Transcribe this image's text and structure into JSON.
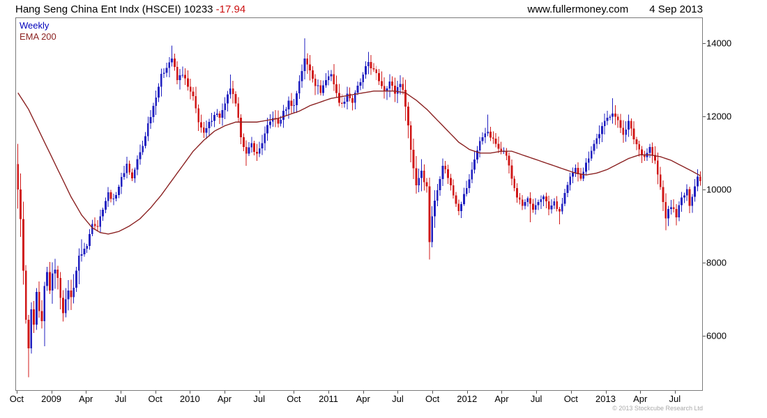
{
  "header": {
    "title": "Hang Seng China Ent Indx (HSCEI) 10233 ",
    "change": "-17.94",
    "website": "www.fullermoney.com",
    "date": "4 Sep 2013"
  },
  "legend": {
    "timeframe": "Weekly",
    "overlay": "EMA 200"
  },
  "footer": {
    "copyright": "© 2013 Stockcube Research Ltd"
  },
  "chart_data": {
    "type": "candlestick",
    "title": "Hang Seng China Ent Indx (HSCEI)",
    "timeframe": "Weekly",
    "overlay": "EMA 200",
    "last_close": 10233,
    "change": -17.94,
    "ylim": [
      4500,
      14700
    ],
    "y_ticks": [
      6000,
      8000,
      10000,
      12000,
      14000
    ],
    "x_range_weeks": 258,
    "x_ticks": [
      {
        "week": 0,
        "label": "Oct"
      },
      {
        "week": 13,
        "label": "2009"
      },
      {
        "week": 26,
        "label": "Apr"
      },
      {
        "week": 39,
        "label": "Jul"
      },
      {
        "week": 52,
        "label": "Oct"
      },
      {
        "week": 65,
        "label": "2010"
      },
      {
        "week": 78,
        "label": "Apr"
      },
      {
        "week": 91,
        "label": "Jul"
      },
      {
        "week": 104,
        "label": "Oct"
      },
      {
        "week": 117,
        "label": "2011"
      },
      {
        "week": 130,
        "label": "Apr"
      },
      {
        "week": 143,
        "label": "Jul"
      },
      {
        "week": 156,
        "label": "Oct"
      },
      {
        "week": 169,
        "label": "2012"
      },
      {
        "week": 182,
        "label": "Apr"
      },
      {
        "week": 195,
        "label": "Jul"
      },
      {
        "week": 208,
        "label": "Oct"
      },
      {
        "week": 221,
        "label": "2013"
      },
      {
        "week": 234,
        "label": "Apr"
      },
      {
        "week": 247,
        "label": "Jul"
      }
    ],
    "up_color": "#2020c0",
    "down_color": "#d01818",
    "ema_color": "#8b2222",
    "first_open": 10700,
    "close_anchors": [
      [
        0,
        9900
      ],
      [
        1,
        9300
      ],
      [
        2,
        7700
      ],
      [
        3,
        6400
      ],
      [
        4,
        5600
      ],
      [
        5,
        6700
      ],
      [
        6,
        6200
      ],
      [
        7,
        7100
      ],
      [
        8,
        6600
      ],
      [
        9,
        6300
      ],
      [
        10,
        7300
      ],
      [
        11,
        7700
      ],
      [
        12,
        7300
      ],
      [
        13,
        7600
      ],
      [
        14,
        7900
      ],
      [
        15,
        7500
      ],
      [
        16,
        7100
      ],
      [
        17,
        6700
      ],
      [
        18,
        6900
      ],
      [
        19,
        7300
      ],
      [
        20,
        7000
      ],
      [
        21,
        7400
      ],
      [
        22,
        7800
      ],
      [
        23,
        8100
      ],
      [
        24,
        8300
      ],
      [
        26,
        8450
      ],
      [
        28,
        9100
      ],
      [
        30,
        9000
      ],
      [
        32,
        9500
      ],
      [
        34,
        9900
      ],
      [
        36,
        9700
      ],
      [
        38,
        10100
      ],
      [
        39,
        10300
      ],
      [
        41,
        10700
      ],
      [
        43,
        10300
      ],
      [
        45,
        10800
      ],
      [
        47,
        11200
      ],
      [
        49,
        11800
      ],
      [
        51,
        12300
      ],
      [
        52,
        12600
      ],
      [
        54,
        13100
      ],
      [
        56,
        13400
      ],
      [
        58,
        13600
      ],
      [
        60,
        13000
      ],
      [
        62,
        13200
      ],
      [
        64,
        12800
      ],
      [
        66,
        12500
      ],
      [
        68,
        11900
      ],
      [
        70,
        11500
      ],
      [
        72,
        11800
      ],
      [
        74,
        12100
      ],
      [
        76,
        12000
      ],
      [
        78,
        12300
      ],
      [
        80,
        12800
      ],
      [
        82,
        12300
      ],
      [
        84,
        11500
      ],
      [
        86,
        10950
      ],
      [
        88,
        11250
      ],
      [
        90,
        10950
      ],
      [
        92,
        11300
      ],
      [
        94,
        11700
      ],
      [
        96,
        12000
      ],
      [
        98,
        11800
      ],
      [
        100,
        12100
      ],
      [
        102,
        12400
      ],
      [
        104,
        12300
      ],
      [
        106,
        13000
      ],
      [
        108,
        13550
      ],
      [
        110,
        13300
      ],
      [
        112,
        12900
      ],
      [
        114,
        12700
      ],
      [
        116,
        13000
      ],
      [
        118,
        13200
      ],
      [
        120,
        12600
      ],
      [
        122,
        12300
      ],
      [
        124,
        12650
      ],
      [
        126,
        12400
      ],
      [
        128,
        12800
      ],
      [
        130,
        13100
      ],
      [
        132,
        13500
      ],
      [
        134,
        13250
      ],
      [
        136,
        13000
      ],
      [
        138,
        12750
      ],
      [
        140,
        12950
      ],
      [
        142,
        12650
      ],
      [
        144,
        12950
      ],
      [
        146,
        12400
      ],
      [
        148,
        11100
      ],
      [
        150,
        10150
      ],
      [
        152,
        10550
      ],
      [
        154,
        10050
      ],
      [
        155,
        8600
      ],
      [
        156,
        9300
      ],
      [
        158,
        10000
      ],
      [
        160,
        10700
      ],
      [
        162,
        10350
      ],
      [
        164,
        9850
      ],
      [
        166,
        9450
      ],
      [
        168,
        9850
      ],
      [
        170,
        10250
      ],
      [
        172,
        10850
      ],
      [
        174,
        11300
      ],
      [
        176,
        11600
      ],
      [
        178,
        11450
      ],
      [
        180,
        11250
      ],
      [
        182,
        11100
      ],
      [
        184,
        10950
      ],
      [
        186,
        10300
      ],
      [
        188,
        9800
      ],
      [
        190,
        9550
      ],
      [
        192,
        9750
      ],
      [
        194,
        9400
      ],
      [
        196,
        9650
      ],
      [
        198,
        9850
      ],
      [
        200,
        9450
      ],
      [
        202,
        9650
      ],
      [
        204,
        9350
      ],
      [
        206,
        9900
      ],
      [
        208,
        10300
      ],
      [
        210,
        10550
      ],
      [
        212,
        10350
      ],
      [
        214,
        10700
      ],
      [
        216,
        11100
      ],
      [
        218,
        11400
      ],
      [
        220,
        11700
      ],
      [
        222,
        11950
      ],
      [
        224,
        12150
      ],
      [
        226,
        11850
      ],
      [
        228,
        11550
      ],
      [
        230,
        11850
      ],
      [
        232,
        11400
      ],
      [
        234,
        11100
      ],
      [
        236,
        10900
      ],
      [
        238,
        11150
      ],
      [
        240,
        10750
      ],
      [
        242,
        10050
      ],
      [
        244,
        9250
      ],
      [
        246,
        9550
      ],
      [
        248,
        9300
      ],
      [
        250,
        9750
      ],
      [
        252,
        9950
      ],
      [
        253,
        9600
      ],
      [
        255,
        10100
      ],
      [
        256,
        10350
      ],
      [
        257,
        10233
      ]
    ],
    "ema_anchors": [
      [
        0,
        12650
      ],
      [
        4,
        12200
      ],
      [
        8,
        11600
      ],
      [
        12,
        11000
      ],
      [
        16,
        10400
      ],
      [
        20,
        9800
      ],
      [
        24,
        9300
      ],
      [
        28,
        8950
      ],
      [
        31,
        8820
      ],
      [
        34,
        8780
      ],
      [
        38,
        8850
      ],
      [
        42,
        9000
      ],
      [
        46,
        9200
      ],
      [
        50,
        9500
      ],
      [
        54,
        9850
      ],
      [
        58,
        10250
      ],
      [
        62,
        10650
      ],
      [
        66,
        11050
      ],
      [
        70,
        11350
      ],
      [
        74,
        11600
      ],
      [
        78,
        11750
      ],
      [
        82,
        11850
      ],
      [
        86,
        11850
      ],
      [
        90,
        11850
      ],
      [
        94,
        11900
      ],
      [
        98,
        11950
      ],
      [
        102,
        12050
      ],
      [
        106,
        12150
      ],
      [
        110,
        12300
      ],
      [
        114,
        12400
      ],
      [
        118,
        12500
      ],
      [
        122,
        12550
      ],
      [
        126,
        12600
      ],
      [
        130,
        12650
      ],
      [
        134,
        12700
      ],
      [
        138,
        12700
      ],
      [
        142,
        12700
      ],
      [
        146,
        12650
      ],
      [
        150,
        12450
      ],
      [
        154,
        12200
      ],
      [
        158,
        11900
      ],
      [
        162,
        11600
      ],
      [
        166,
        11300
      ],
      [
        170,
        11100
      ],
      [
        174,
        11000
      ],
      [
        178,
        11000
      ],
      [
        182,
        11050
      ],
      [
        186,
        11050
      ],
      [
        190,
        10950
      ],
      [
        194,
        10850
      ],
      [
        198,
        10750
      ],
      [
        202,
        10650
      ],
      [
        206,
        10550
      ],
      [
        210,
        10450
      ],
      [
        214,
        10400
      ],
      [
        218,
        10450
      ],
      [
        222,
        10550
      ],
      [
        226,
        10700
      ],
      [
        230,
        10850
      ],
      [
        234,
        10950
      ],
      [
        238,
        10950
      ],
      [
        242,
        10900
      ],
      [
        246,
        10800
      ],
      [
        250,
        10650
      ],
      [
        254,
        10500
      ],
      [
        257,
        10380
      ]
    ],
    "extremes": {
      "highs": [
        [
          58,
          13950
        ],
        [
          80,
          13150
        ],
        [
          108,
          14150
        ],
        [
          132,
          13770
        ],
        [
          177,
          12050
        ],
        [
          224,
          12500
        ]
      ],
      "lows": [
        [
          4,
          4850
        ],
        [
          10,
          5700
        ],
        [
          86,
          10650
        ],
        [
          155,
          8080
        ],
        [
          193,
          9100
        ],
        [
          204,
          9050
        ],
        [
          244,
          8880
        ]
      ]
    },
    "vol_windows": [
      [
        0,
        24,
        2.6
      ],
      [
        146,
        158,
        1.7
      ],
      [
        240,
        250,
        1.3
      ]
    ]
  }
}
